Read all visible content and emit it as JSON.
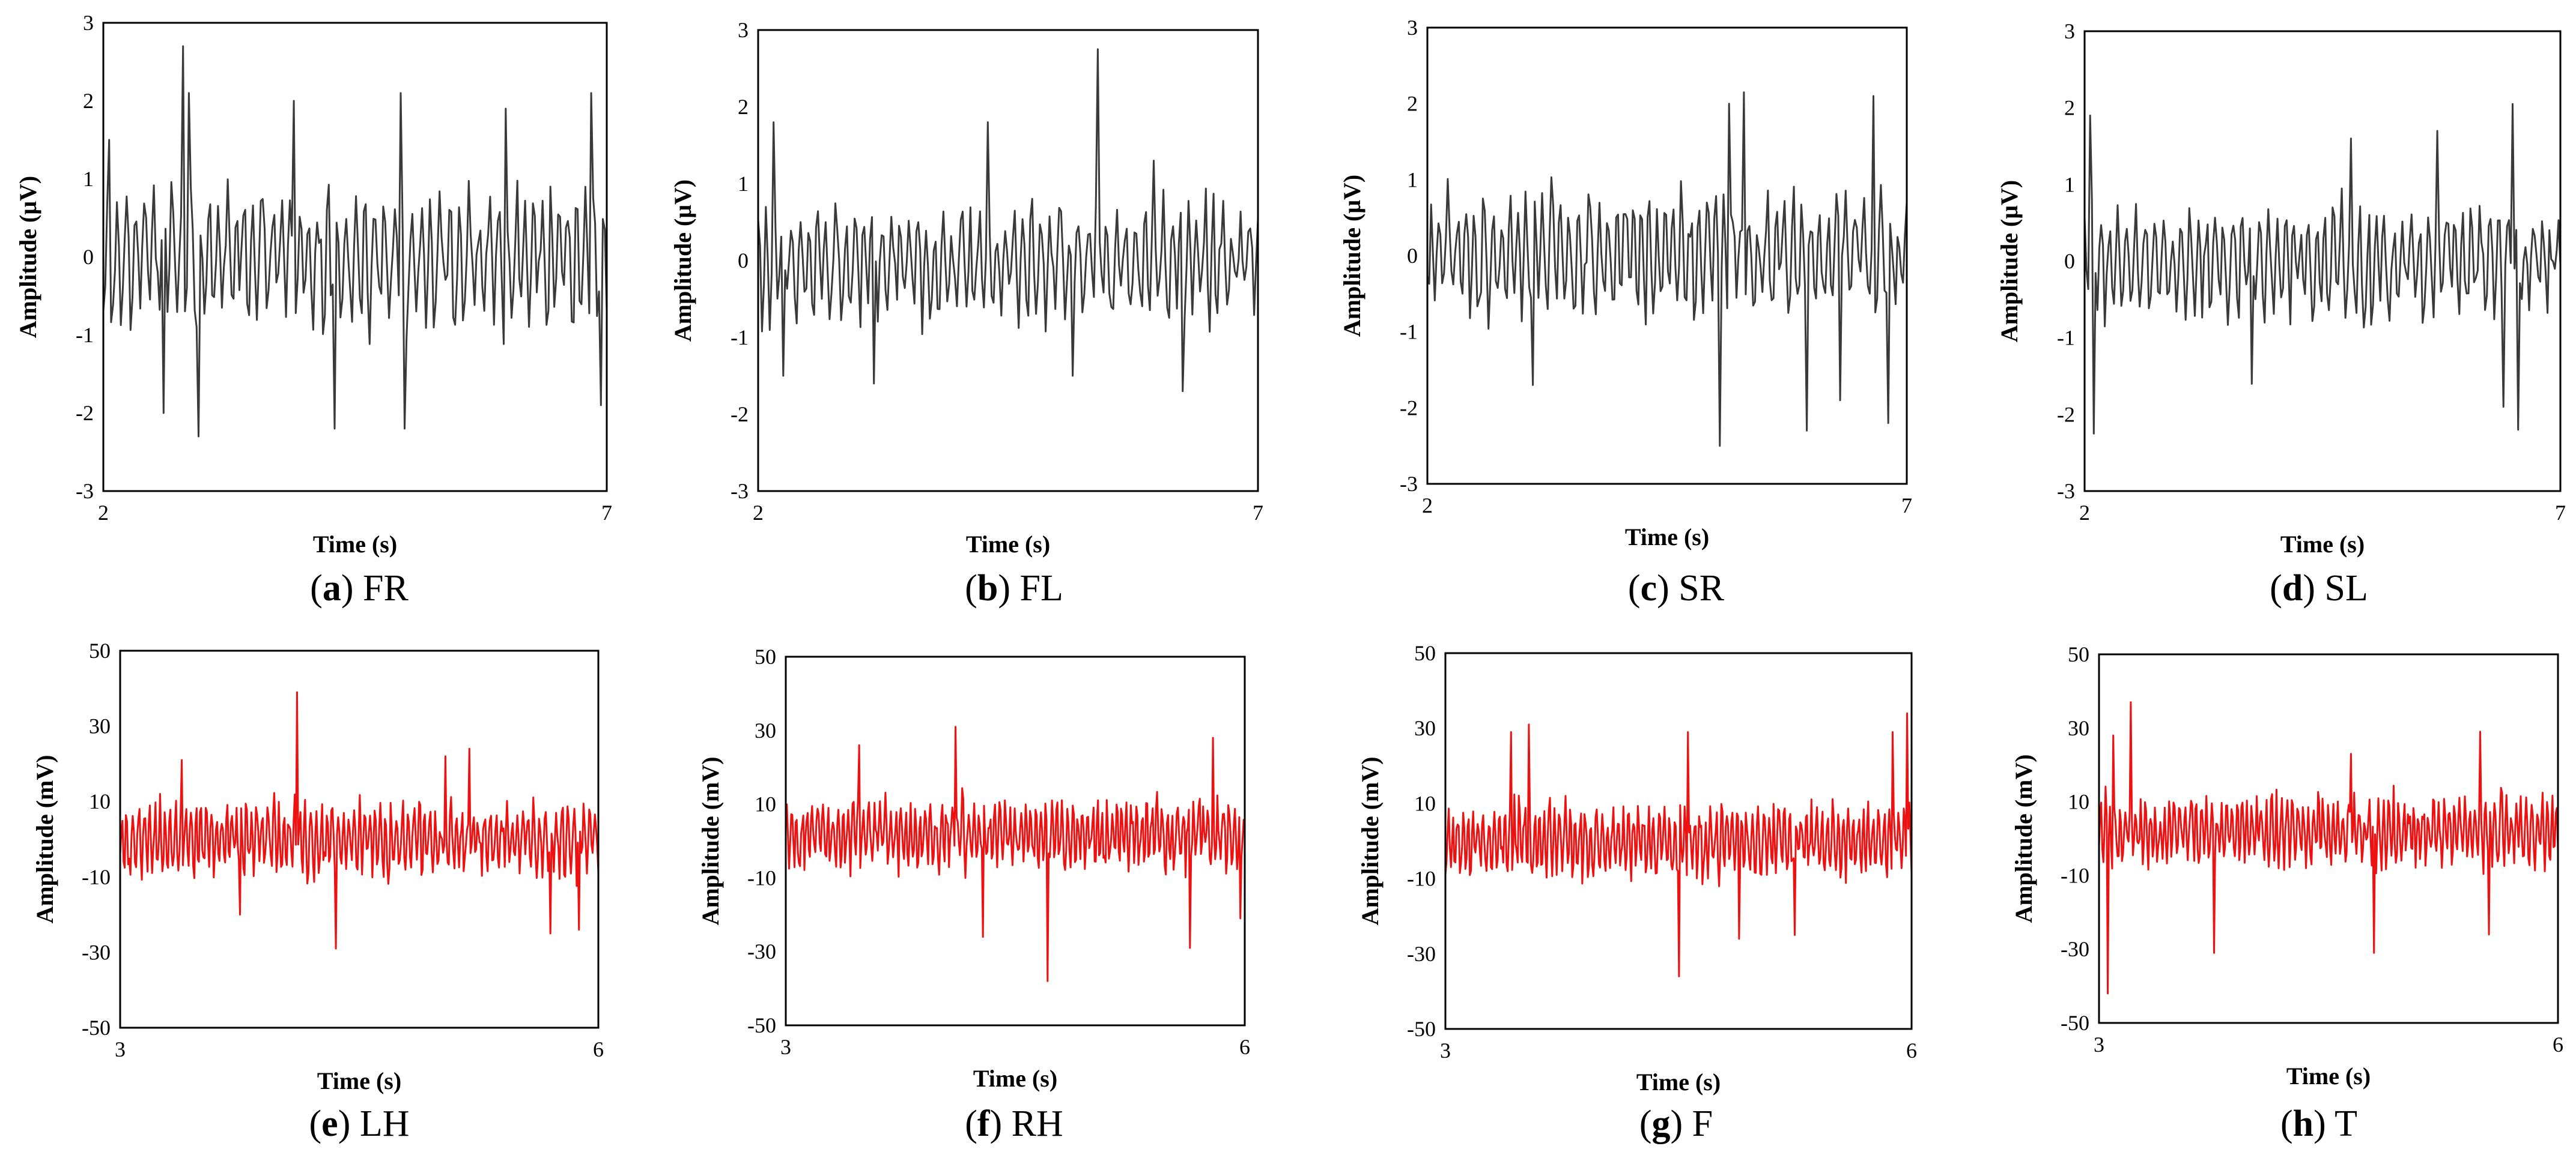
{
  "colors": {
    "top_signal": "#3a3a3a",
    "bottom_signal": "#ee1111",
    "frame": "#000000",
    "text": "#000000"
  },
  "chart_data": [
    {
      "id": "a",
      "type": "line",
      "letter": "a",
      "label": "FR",
      "xlabel": "Time (s)",
      "ylabel": "Amplitude (μV)",
      "xlim": [
        2,
        7
      ],
      "ylim": [
        -3,
        3
      ],
      "xticks": [
        "2",
        "7"
      ],
      "yticks": [
        "3",
        "2",
        "1",
        "0",
        "-1",
        "-2",
        "-3"
      ],
      "series": [
        {
          "name": "FR",
          "color": "#3a3a3a",
          "seed": 11,
          "n": 260,
          "amp": 0.75,
          "mean": 0,
          "peaks": [
            [
              0.01,
              1.5
            ],
            [
              0.17,
              2.1
            ],
            [
              0.12,
              -2.0
            ],
            [
              0.16,
              2.7
            ],
            [
              0.19,
              -2.3
            ],
            [
              0.46,
              -2.2
            ],
            [
              0.59,
              2.1
            ],
            [
              0.6,
              -2.2
            ],
            [
              0.97,
              2.1
            ],
            [
              0.99,
              -1.9
            ],
            [
              0.38,
              2.0
            ],
            [
              0.8,
              1.9
            ]
          ]
        }
      ]
    },
    {
      "id": "b",
      "type": "line",
      "letter": "b",
      "label": "FL",
      "xlabel": "Time (s)",
      "ylabel": "Amplitude (μV)",
      "xlim": [
        2,
        7
      ],
      "ylim": [
        -3,
        3
      ],
      "xticks": [
        "2",
        "7"
      ],
      "yticks": [
        "3",
        "2",
        "1",
        "0",
        "-1",
        "-2",
        "-3"
      ],
      "series": [
        {
          "name": "FL",
          "color": "#3a3a3a",
          "seed": 23,
          "n": 260,
          "amp": 0.6,
          "mean": 0,
          "peaks": [
            [
              0.03,
              1.8
            ],
            [
              0.05,
              -1.5
            ],
            [
              0.23,
              -1.6
            ],
            [
              0.46,
              1.8
            ],
            [
              0.63,
              -1.5
            ],
            [
              0.68,
              2.75
            ],
            [
              0.85,
              -1.7
            ],
            [
              0.79,
              1.3
            ]
          ]
        }
      ]
    },
    {
      "id": "c",
      "type": "line",
      "letter": "c",
      "label": "SR",
      "xlabel": "Time (s)",
      "ylabel": "Amplitude (μV)",
      "xlim": [
        2,
        7
      ],
      "ylim": [
        -3,
        3
      ],
      "xticks": [
        "2",
        "7"
      ],
      "yticks": [
        "3",
        "2",
        "1",
        "0",
        "-1",
        "-2",
        "-3"
      ],
      "series": [
        {
          "name": "SR",
          "color": "#3a3a3a",
          "seed": 37,
          "n": 260,
          "amp": 0.65,
          "mean": 0,
          "peaks": [
            [
              0.22,
              -1.7
            ],
            [
              0.63,
              2.0
            ],
            [
              0.66,
              2.15
            ],
            [
              0.61,
              -2.5
            ],
            [
              0.79,
              -2.3
            ],
            [
              0.93,
              2.1
            ],
            [
              0.96,
              -2.2
            ],
            [
              0.86,
              -1.9
            ]
          ]
        }
      ]
    },
    {
      "id": "d",
      "type": "line",
      "letter": "d",
      "label": "SL",
      "xlabel": "Time (s)",
      "ylabel": "Amplitude (μV)",
      "xlim": [
        2,
        7
      ],
      "ylim": [
        -3,
        3
      ],
      "xticks": [
        "2",
        "7"
      ],
      "yticks": [
        "3",
        "2",
        "1",
        "0",
        "-1",
        "-2",
        "-3"
      ],
      "series": [
        {
          "name": "SL",
          "color": "#3a3a3a",
          "seed": 53,
          "n": 260,
          "amp": 0.6,
          "mean": 0,
          "peaks": [
            [
              0.01,
              1.9
            ],
            [
              0.02,
              -2.25
            ],
            [
              0.35,
              -1.6
            ],
            [
              0.56,
              1.6
            ],
            [
              0.74,
              1.7
            ],
            [
              0.9,
              2.05
            ],
            [
              0.91,
              -2.2
            ],
            [
              0.88,
              -1.9
            ]
          ]
        }
      ]
    },
    {
      "id": "e",
      "type": "line",
      "letter": "e",
      "label": "LH",
      "xlabel": "Time (s)",
      "ylabel": "Amplitude (mV)",
      "xlim": [
        3,
        6
      ],
      "ylim": [
        -50,
        50
      ],
      "xticks": [
        "3",
        "6"
      ],
      "yticks": [
        "50",
        "30",
        "10",
        "-10",
        "-30",
        "-50"
      ],
      "series": [
        {
          "name": "LH",
          "color": "#ee1111",
          "seed": 71,
          "n": 420,
          "amp": 8,
          "mean": 0,
          "peaks": [
            [
              0.13,
              21
            ],
            [
              0.25,
              -20
            ],
            [
              0.37,
              39
            ],
            [
              0.45,
              -29
            ],
            [
              0.68,
              22
            ],
            [
              0.73,
              24
            ],
            [
              0.9,
              -25
            ],
            [
              0.96,
              -24
            ]
          ]
        }
      ]
    },
    {
      "id": "f",
      "type": "line",
      "letter": "f",
      "label": "RH",
      "xlabel": "Time (s)",
      "ylabel": "Amplitude (mV)",
      "xlim": [
        3,
        6
      ],
      "ylim": [
        -50,
        50
      ],
      "xticks": [
        "3",
        "6"
      ],
      "yticks": [
        "50",
        "30",
        "10",
        "-10",
        "-30",
        "-50"
      ],
      "series": [
        {
          "name": "RH",
          "color": "#ee1111",
          "seed": 89,
          "n": 420,
          "amp": 8,
          "mean": 2,
          "peaks": [
            [
              0.16,
              26
            ],
            [
              0.37,
              31
            ],
            [
              0.43,
              -26
            ],
            [
              0.57,
              -38
            ],
            [
              0.93,
              28
            ],
            [
              0.88,
              -29
            ],
            [
              0.99,
              -21
            ]
          ]
        }
      ]
    },
    {
      "id": "g",
      "type": "line",
      "letter": "g",
      "label": "F",
      "xlabel": "Time (s)",
      "ylabel": "Amplitude (mV)",
      "xlim": [
        3,
        6
      ],
      "ylim": [
        -50,
        50
      ],
      "xticks": [
        "3",
        "6"
      ],
      "yticks": [
        "50",
        "30",
        "10",
        "-10",
        "-30",
        "-50"
      ],
      "series": [
        {
          "name": "F",
          "color": "#ee1111",
          "seed": 97,
          "n": 420,
          "amp": 8,
          "mean": 0,
          "peaks": [
            [
              0.14,
              29
            ],
            [
              0.18,
              31
            ],
            [
              0.5,
              -36
            ],
            [
              0.52,
              29
            ],
            [
              0.63,
              -26
            ],
            [
              0.75,
              -25
            ],
            [
              0.99,
              34
            ],
            [
              0.96,
              29
            ]
          ]
        }
      ]
    },
    {
      "id": "h",
      "type": "line",
      "letter": "h",
      "label": "T",
      "xlabel": "Time (s)",
      "ylabel": "Amplitude (mV)",
      "xlim": [
        3,
        6
      ],
      "ylim": [
        -50,
        50
      ],
      "xticks": [
        "3",
        "6"
      ],
      "yticks": [
        "50",
        "30",
        "10",
        "-10",
        "-30",
        "-50"
      ],
      "series": [
        {
          "name": "T",
          "color": "#ee1111",
          "seed": 113,
          "n": 420,
          "amp": 8,
          "mean": 2,
          "peaks": [
            [
              0.02,
              -42
            ],
            [
              0.03,
              28
            ],
            [
              0.07,
              37
            ],
            [
              0.25,
              -31
            ],
            [
              0.55,
              23
            ],
            [
              0.6,
              -31
            ],
            [
              0.83,
              29
            ],
            [
              0.85,
              -26
            ]
          ]
        }
      ]
    }
  ]
}
